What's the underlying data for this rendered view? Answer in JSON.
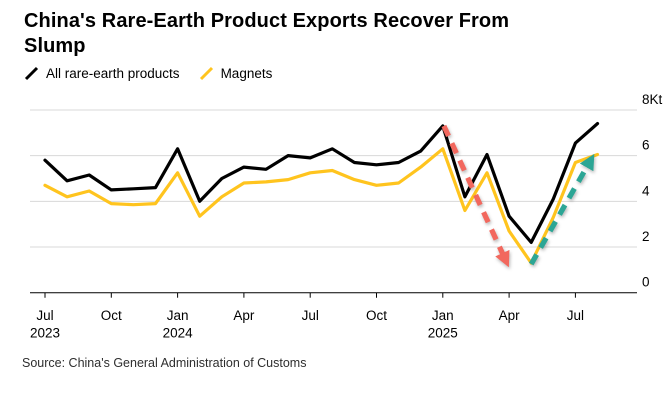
{
  "title": "China's Rare-Earth Product Exports Recover From Slump",
  "source": "Source: China's General Administration of Customs",
  "legend": [
    {
      "label": "All rare-earth products",
      "color": "#000000"
    },
    {
      "label": "Magnets",
      "color": "#FFC41E"
    }
  ],
  "chart_data": {
    "type": "line",
    "title": "China's Rare-Earth Product Exports Recover From Slump",
    "unit": "Kt",
    "xlabel": "",
    "ylabel": "Kt",
    "ylim": [
      0,
      8
    ],
    "grid": "horizontal",
    "legend_position": "top-left",
    "x": [
      "Jul 2023",
      "Aug 2023",
      "Sep 2023",
      "Oct 2023",
      "Nov 2023",
      "Dec 2023",
      "Jan 2024",
      "Feb 2024",
      "Mar 2024",
      "Apr 2024",
      "May 2024",
      "Jun 2024",
      "Jul 2024",
      "Aug 2024",
      "Sep 2024",
      "Oct 2024",
      "Nov 2024",
      "Dec 2024",
      "Jan 2025",
      "Feb 2025",
      "Mar 2025",
      "Apr 2025",
      "May 2025",
      "Jun 2025",
      "Jul 2025",
      "Aug 2025"
    ],
    "series": [
      {
        "name": "All rare-earth products",
        "color": "#000000",
        "values": [
          5.8,
          4.9,
          5.15,
          4.5,
          4.55,
          4.6,
          6.3,
          4.0,
          5.0,
          5.5,
          5.4,
          6.0,
          5.9,
          6.3,
          5.7,
          5.6,
          5.7,
          6.2,
          7.3,
          4.2,
          6.05,
          3.35,
          2.2,
          4.1,
          6.55,
          7.4
        ]
      },
      {
        "name": "Magnets",
        "color": "#FFC41E",
        "values": [
          4.7,
          4.2,
          4.45,
          3.9,
          3.85,
          3.9,
          5.25,
          3.35,
          4.2,
          4.8,
          4.85,
          4.95,
          5.25,
          5.35,
          4.95,
          4.7,
          4.8,
          5.5,
          6.3,
          3.6,
          5.25,
          2.7,
          1.3,
          3.3,
          5.7,
          6.05
        ]
      }
    ],
    "yticks": [
      {
        "value": 8,
        "label": "8Kt"
      },
      {
        "value": 6,
        "label": "6"
      },
      {
        "value": 4,
        "label": "4"
      },
      {
        "value": 2,
        "label": "2"
      },
      {
        "value": 0,
        "label": "0"
      }
    ],
    "xticks": [
      {
        "index": 0,
        "label": "Jul",
        "year": "2023"
      },
      {
        "index": 3,
        "label": "Oct",
        "year": ""
      },
      {
        "index": 6,
        "label": "Jan",
        "year": "2024"
      },
      {
        "index": 9,
        "label": "Apr",
        "year": ""
      },
      {
        "index": 12,
        "label": "Jul",
        "year": ""
      },
      {
        "index": 15,
        "label": "Oct",
        "year": ""
      },
      {
        "index": 18,
        "label": "Jan",
        "year": "2025"
      },
      {
        "index": 21,
        "label": "Apr",
        "year": ""
      },
      {
        "index": 24,
        "label": "Jul",
        "year": ""
      }
    ],
    "colors": {
      "grid": "#D8D8D8",
      "axis": "#000000"
    },
    "annotations": [
      {
        "name": "decline-arrow",
        "type": "arrow",
        "color": "#F2685E",
        "from": {
          "x_index": 18.05,
          "value": 7.3
        },
        "to": {
          "x_index": 20.9,
          "value": 1.3
        }
      },
      {
        "name": "recovery-arrow",
        "type": "arrow",
        "color": "#2CA695",
        "from": {
          "x_index": 22.0,
          "value": 1.25
        },
        "to": {
          "x_index": 24.75,
          "value": 5.9
        }
      }
    ]
  }
}
